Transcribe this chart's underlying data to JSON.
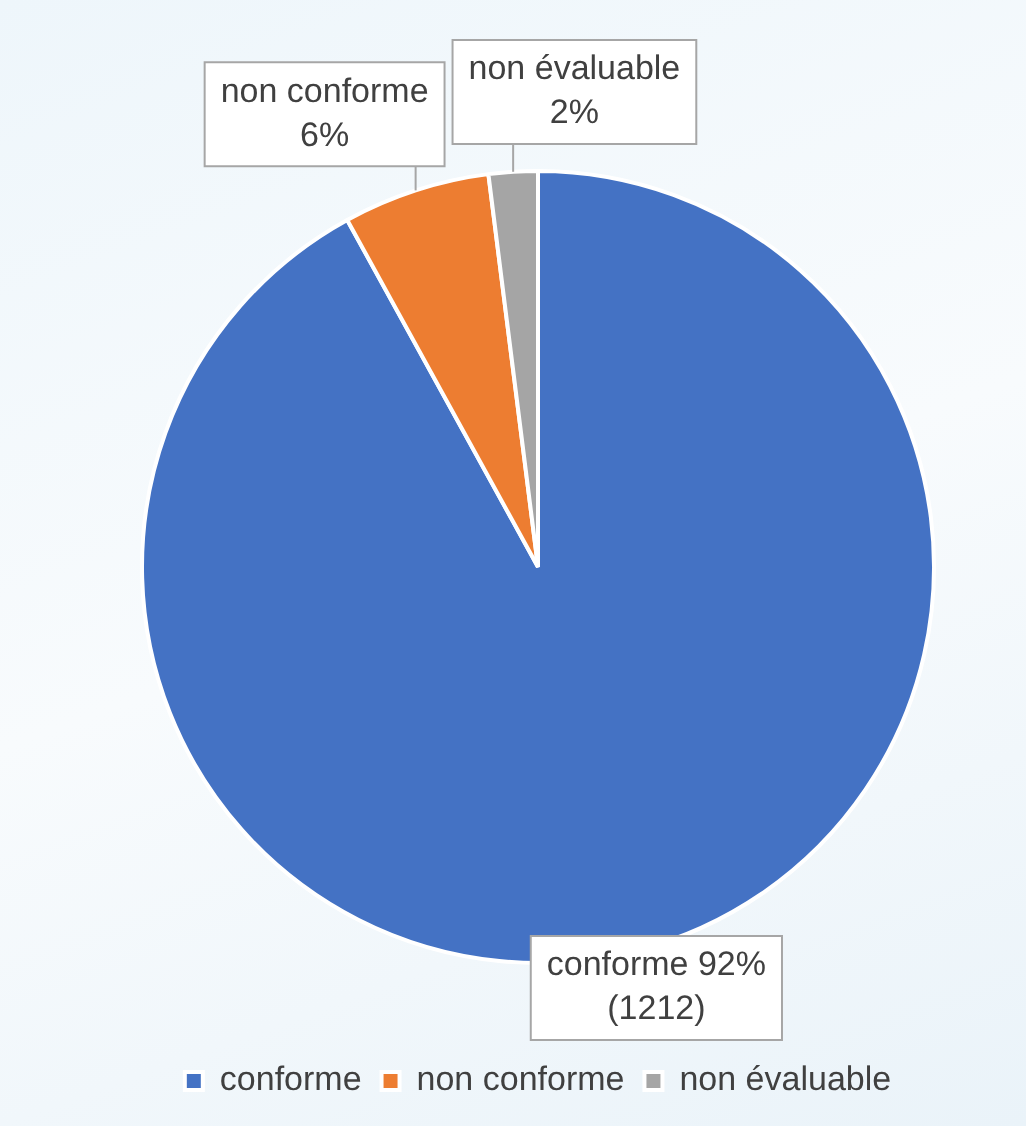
{
  "chart_data": {
    "type": "pie",
    "categories": [
      "conforme",
      "non conforme",
      "non évaluable"
    ],
    "values": [
      92,
      6,
      2
    ],
    "colors": [
      "#4472c4",
      "#ed7d31",
      "#a5a5a5"
    ],
    "value_labels": [
      "92%\n(1212)",
      "6%",
      "2%"
    ],
    "legend": "bottom"
  }
}
